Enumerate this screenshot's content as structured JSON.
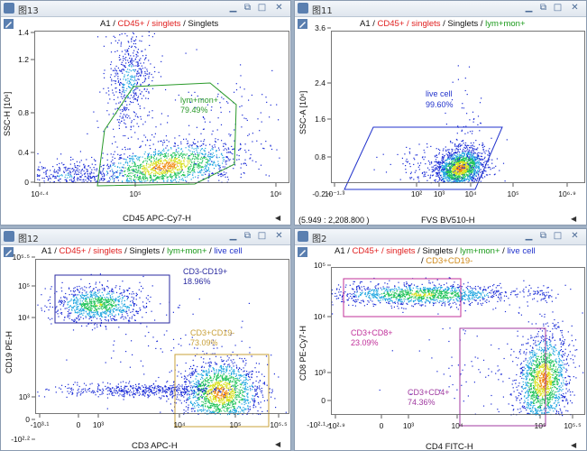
{
  "windows": [
    {
      "title": "图13",
      "header": [
        {
          "t": "A1 / ",
          "c": "black"
        },
        {
          "t": "CD45+ / singlets",
          "c": "red"
        },
        {
          "t": " / Singlets",
          "c": "black"
        }
      ],
      "header2": [],
      "xlabel": "CD45 APC-Cy7-H",
      "ylabel": "SSC-H [10⁶]",
      "xticks": [
        {
          "v": "10⁴·⁴"
        },
        {
          "v": "10⁵"
        },
        {
          "v": "10⁶"
        }
      ],
      "yticks": [
        {
          "v": "1.4"
        },
        {
          "v": "1.2"
        },
        {
          "v": "0.8"
        },
        {
          "v": "0.4"
        },
        {
          "v": "0"
        }
      ],
      "gates": [
        {
          "name": "lym+mon+",
          "pct": "79.49%",
          "color": "#2a9a2a"
        }
      ],
      "coord": ""
    },
    {
      "title": "图11",
      "header": [
        {
          "t": "A1 / ",
          "c": "black"
        },
        {
          "t": "CD45+ / singlets",
          "c": "red"
        },
        {
          "t": " / Singlets / ",
          "c": "black"
        },
        {
          "t": "lym+mon+",
          "c": "green"
        }
      ],
      "header2": [],
      "xlabel": "FVS BV510-H",
      "ylabel": "SSC-A [10⁶]",
      "xticks": [
        {
          "v": "10⁻¹·³"
        },
        {
          "v": "10²"
        },
        {
          "v": "10³"
        },
        {
          "v": "10⁴"
        },
        {
          "v": "10⁵"
        },
        {
          "v": "10⁶·⁹"
        }
      ],
      "yticks": [
        {
          "v": "3.6"
        },
        {
          "v": "2.4"
        },
        {
          "v": "1.6"
        },
        {
          "v": "0.8"
        },
        {
          "v": "-0.2"
        }
      ],
      "gates": [
        {
          "name": "live cell",
          "pct": "99.60%",
          "color": "#2233cc"
        }
      ],
      "coord": "(5.949 : 2,208.800 )"
    },
    {
      "title": "图12",
      "header": [
        {
          "t": "A1 / ",
          "c": "black"
        },
        {
          "t": "CD45+ / singlets",
          "c": "red"
        },
        {
          "t": " / Singlets / ",
          "c": "black"
        },
        {
          "t": "lym+mon+",
          "c": "green"
        },
        {
          "t": " / ",
          "c": "black"
        },
        {
          "t": "live cell",
          "c": "blue"
        }
      ],
      "header2": [],
      "xlabel": "CD3 APC-H",
      "ylabel": "CD19 PE-H",
      "xticks": [
        {
          "v": "-10³·¹"
        },
        {
          "v": "0"
        },
        {
          "v": "10³"
        },
        {
          "v": "10⁴"
        },
        {
          "v": "10⁵"
        },
        {
          "v": "10⁵·⁵"
        }
      ],
      "yticks": [
        {
          "v": "10⁵·⁵"
        },
        {
          "v": "10⁵"
        },
        {
          "v": "10⁴"
        },
        {
          "v": "10³"
        },
        {
          "v": "0"
        },
        {
          "v": "-10²·²"
        }
      ],
      "gates": [
        {
          "name": "CD3-CD19+",
          "pct": "18.96%",
          "color": "#2a2aa0"
        },
        {
          "name": "CD3+CD19-",
          "pct": "73.09%",
          "color": "#c8a03a"
        }
      ],
      "coord": ""
    },
    {
      "title": "图2",
      "header": [
        {
          "t": "A1 / ",
          "c": "black"
        },
        {
          "t": "CD45+ / singlets",
          "c": "red"
        },
        {
          "t": " / Singlets / ",
          "c": "black"
        },
        {
          "t": "lym+mon+",
          "c": "green"
        },
        {
          "t": " / ",
          "c": "black"
        },
        {
          "t": "live cell",
          "c": "blue"
        }
      ],
      "header2": [
        {
          "t": "/ ",
          "c": "black"
        },
        {
          "t": "CD3+CD19-",
          "c": "orange"
        }
      ],
      "xlabel": "CD4 FITC-H",
      "ylabel": "CD8 PE-Cy7-H",
      "xticks": [
        {
          "v": "-10²·⁹"
        },
        {
          "v": "0"
        },
        {
          "v": "10³"
        },
        {
          "v": "10⁴"
        },
        {
          "v": "10⁵"
        },
        {
          "v": "10⁵·⁵"
        }
      ],
      "yticks": [
        {
          "v": "10⁵"
        },
        {
          "v": "10⁴"
        },
        {
          "v": "10³"
        },
        {
          "v": "0"
        },
        {
          "v": "-10²·¹"
        }
      ],
      "gates": [
        {
          "name": "CD3+CD8+",
          "pct": "23.09%",
          "color": "#c0309a"
        },
        {
          "name": "CD3+CD4+",
          "pct": "74.36%",
          "color": "#a03aa0"
        }
      ],
      "coord": ""
    }
  ]
}
